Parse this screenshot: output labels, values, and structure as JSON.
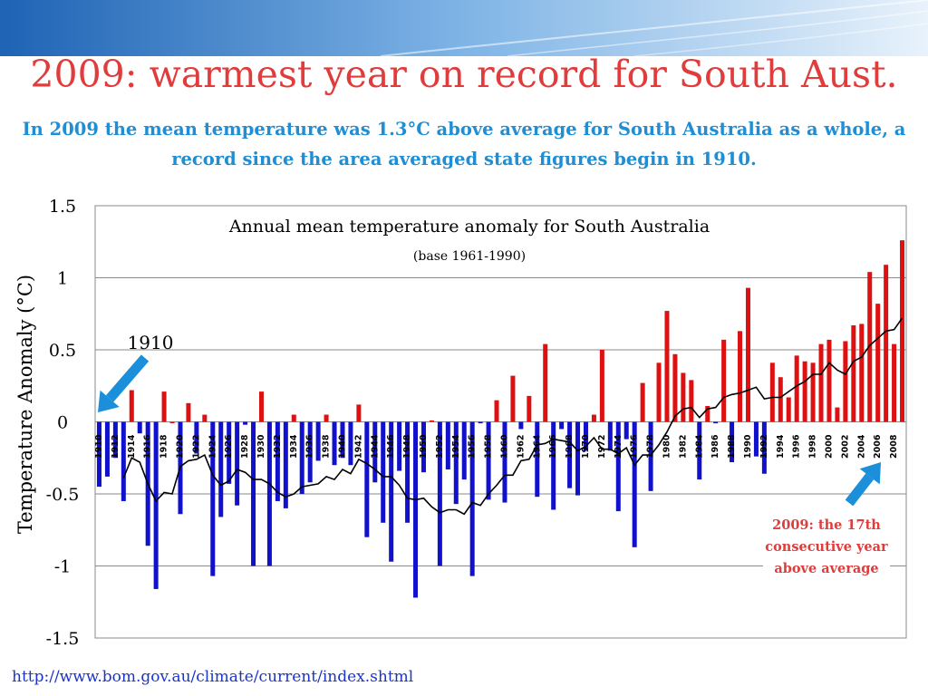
{
  "slide": {
    "title": "2009: warmest year on record for South Aust.",
    "subtitle": "In 2009 the mean temperature was 1.3°C above average for South Australia as a whole, a record since the area averaged state figures begin in 1910.",
    "source_url": "http://www.bom.gov.au/climate/current/index.shtml",
    "annotation_1910": "1910",
    "annotation_2009": "2009: the 17th consecutive year above average",
    "colors": {
      "title": "#e03c3c",
      "subtitle": "#1f8ed4",
      "positive": "#dd1111",
      "negative": "#1111cc",
      "trend": "#000000",
      "arrow": "#1b8fd9",
      "link": "#1a33cc"
    },
    "icons": [
      "arrow-icon"
    ]
  },
  "chart_data": {
    "type": "bar",
    "title": "Annual mean temperature anomaly for South Australia",
    "subtitle": "(base 1961-1990)",
    "ylabel": "Temperature Anomaly (°C)",
    "ylim": [
      -1.5,
      1.5
    ],
    "y_ticks": [
      "1.5",
      "1",
      "0.5",
      "0",
      "-0.5",
      "-1",
      "-1.5"
    ],
    "y_tick_values": [
      1.5,
      1,
      0.5,
      0,
      -0.5,
      -1,
      -1.5
    ],
    "x_tick_labels": [
      "1910",
      "1912",
      "1914",
      "1916",
      "1918",
      "1920",
      "1922",
      "1924",
      "1926",
      "1928",
      "1930",
      "1932",
      "1934",
      "1936",
      "1938",
      "1940",
      "1942",
      "1944",
      "1946",
      "1948",
      "1950",
      "1952",
      "1954",
      "1956",
      "1958",
      "1960",
      "1962",
      "1964",
      "1966",
      "1968",
      "1970",
      "1972",
      "1974",
      "1976",
      "1978",
      "1980",
      "1982",
      "1984",
      "1986",
      "1988",
      "1990",
      "1992",
      "1994",
      "1996",
      "1998",
      "2000",
      "2002",
      "2004",
      "2006",
      "2008"
    ],
    "grid": true,
    "legend": "none",
    "series": [
      {
        "name": "annual anomaly",
        "x": [
          1910,
          1911,
          1912,
          1913,
          1914,
          1915,
          1916,
          1917,
          1918,
          1919,
          1920,
          1921,
          1922,
          1923,
          1924,
          1925,
          1926,
          1927,
          1928,
          1929,
          1930,
          1931,
          1932,
          1933,
          1934,
          1935,
          1936,
          1937,
          1938,
          1939,
          1940,
          1941,
          1942,
          1943,
          1944,
          1945,
          1946,
          1947,
          1948,
          1949,
          1950,
          1951,
          1952,
          1953,
          1954,
          1955,
          1956,
          1957,
          1958,
          1959,
          1960,
          1961,
          1962,
          1963,
          1964,
          1965,
          1966,
          1967,
          1968,
          1969,
          1970,
          1971,
          1972,
          1973,
          1974,
          1975,
          1976,
          1977,
          1978,
          1979,
          1980,
          1981,
          1982,
          1983,
          1984,
          1985,
          1986,
          1987,
          1988,
          1989,
          1990,
          1991,
          1992,
          1993,
          1994,
          1995,
          1996,
          1997,
          1998,
          1999,
          2000,
          2001,
          2002,
          2003,
          2004,
          2005,
          2006,
          2007,
          2008,
          2009
        ],
        "values": [
          -0.45,
          -0.38,
          -0.25,
          -0.55,
          0.22,
          -0.08,
          -0.86,
          -1.16,
          0.21,
          0.0,
          -0.64,
          0.13,
          -0.22,
          0.05,
          -1.07,
          -0.66,
          -0.43,
          -0.58,
          -0.02,
          -1.0,
          0.21,
          -1.0,
          -0.55,
          -0.6,
          0.05,
          -0.5,
          -0.42,
          -0.27,
          0.05,
          -0.3,
          -0.25,
          -0.3,
          0.12,
          -0.8,
          -0.42,
          -0.7,
          -0.97,
          -0.34,
          -0.7,
          -1.22,
          -0.35,
          0.01,
          -1.0,
          -0.33,
          -0.57,
          -0.4,
          -1.07,
          -0.01,
          -0.54,
          0.15,
          -0.56,
          0.32,
          -0.05,
          0.18,
          -0.52,
          0.54,
          -0.61,
          -0.05,
          -0.46,
          -0.51,
          -0.2,
          0.05,
          0.5,
          -0.2,
          -0.62,
          -0.12,
          -0.87,
          0.27,
          -0.48,
          0.41,
          0.77,
          0.47,
          0.34,
          0.29,
          -0.4,
          0.11,
          -0.01,
          0.57,
          -0.28,
          0.63,
          0.93,
          -0.24,
          -0.36,
          0.41,
          0.31,
          0.17,
          0.46,
          0.42,
          0.41,
          0.54,
          0.57,
          0.1,
          0.56,
          0.67,
          0.68,
          1.04,
          0.82,
          1.09,
          0.54,
          1.26
        ]
      },
      {
        "name": "moving average",
        "x": [
          1913,
          1914,
          1915,
          1916,
          1917,
          1918,
          1919,
          1920,
          1921,
          1922,
          1923,
          1924,
          1925,
          1926,
          1927,
          1928,
          1929,
          1930,
          1931,
          1932,
          1933,
          1934,
          1935,
          1936,
          1937,
          1938,
          1939,
          1940,
          1941,
          1942,
          1943,
          1944,
          1945,
          1946,
          1947,
          1948,
          1949,
          1950,
          1951,
          1952,
          1953,
          1954,
          1955,
          1956,
          1957,
          1958,
          1959,
          1960,
          1961,
          1962,
          1963,
          1964,
          1965,
          1966,
          1967,
          1968,
          1969,
          1970,
          1971,
          1972,
          1973,
          1974,
          1975,
          1976,
          1977,
          1978,
          1979,
          1980,
          1981,
          1982,
          1983,
          1984,
          1985,
          1986,
          1987,
          1988,
          1989,
          1990,
          1991,
          1992,
          1993,
          1994,
          1995,
          1996,
          1997,
          1998,
          1999,
          2000,
          2001,
          2002,
          2003,
          2004,
          2005,
          2006,
          2007,
          2008,
          2009
        ],
        "values": [
          -0.39,
          -0.25,
          -0.28,
          -0.43,
          -0.55,
          -0.49,
          -0.5,
          -0.31,
          -0.27,
          -0.26,
          -0.23,
          -0.37,
          -0.44,
          -0.41,
          -0.33,
          -0.35,
          -0.4,
          -0.4,
          -0.43,
          -0.49,
          -0.52,
          -0.5,
          -0.45,
          -0.44,
          -0.43,
          -0.38,
          -0.4,
          -0.33,
          -0.36,
          -0.26,
          -0.29,
          -0.33,
          -0.38,
          -0.38,
          -0.44,
          -0.53,
          -0.54,
          -0.53,
          -0.59,
          -0.63,
          -0.61,
          -0.61,
          -0.64,
          -0.56,
          -0.58,
          -0.5,
          -0.44,
          -0.37,
          -0.37,
          -0.27,
          -0.26,
          -0.16,
          -0.15,
          -0.12,
          -0.13,
          -0.14,
          -0.2,
          -0.17,
          -0.11,
          -0.19,
          -0.19,
          -0.22,
          -0.18,
          -0.3,
          -0.23,
          -0.23,
          -0.16,
          -0.07,
          0.04,
          0.09,
          0.1,
          0.03,
          0.09,
          0.1,
          0.17,
          0.19,
          0.2,
          0.22,
          0.24,
          0.16,
          0.17,
          0.17,
          0.21,
          0.25,
          0.28,
          0.33,
          0.33,
          0.41,
          0.36,
          0.33,
          0.42,
          0.45,
          0.53,
          0.58,
          0.63,
          0.64,
          0.72
        ]
      }
    ]
  }
}
